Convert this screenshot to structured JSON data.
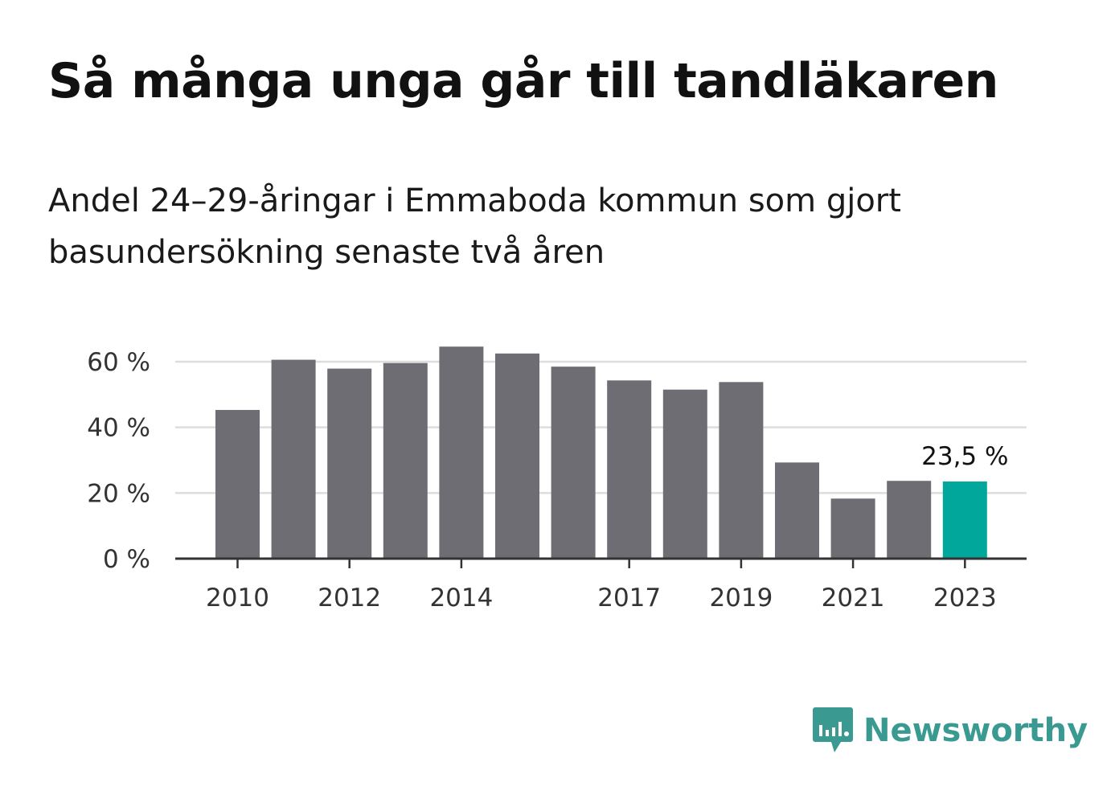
{
  "title": "Så många unga går till tandläkaren",
  "subtitle": "Andel 24–29-åringar i Emmaboda kommun som gjort basundersökning senaste två åren",
  "brand": {
    "name": "Newsworthy",
    "logo_icon": "newsworthy-chart-bubble-icon",
    "color": "#3a9a92"
  },
  "chart_data": {
    "type": "bar",
    "categories": [
      "2010",
      "2011",
      "2012",
      "2013",
      "2014",
      "2015",
      "2016",
      "2017",
      "2018",
      "2019",
      "2020",
      "2021",
      "2022",
      "2023"
    ],
    "values": [
      45.3,
      60.6,
      57.9,
      59.6,
      64.6,
      62.5,
      58.5,
      54.3,
      51.5,
      53.8,
      29.3,
      18.3,
      23.7,
      23.5
    ],
    "x_tick_labels": [
      "2010",
      "2012",
      "2014",
      "2017",
      "2019",
      "2021",
      "2023"
    ],
    "y_ticks": [
      0,
      20,
      40,
      60
    ],
    "y_tick_labels": [
      "0 %",
      "20 %",
      "40 %",
      "60 %"
    ],
    "ylim": [
      0,
      70
    ],
    "grid": true,
    "colors": {
      "bar": "#6e6d73",
      "highlight": "#00a79a",
      "grid": "#dddddd",
      "axis": "#333333"
    },
    "highlight_index": 13,
    "highlight_label": "23,5 %"
  }
}
